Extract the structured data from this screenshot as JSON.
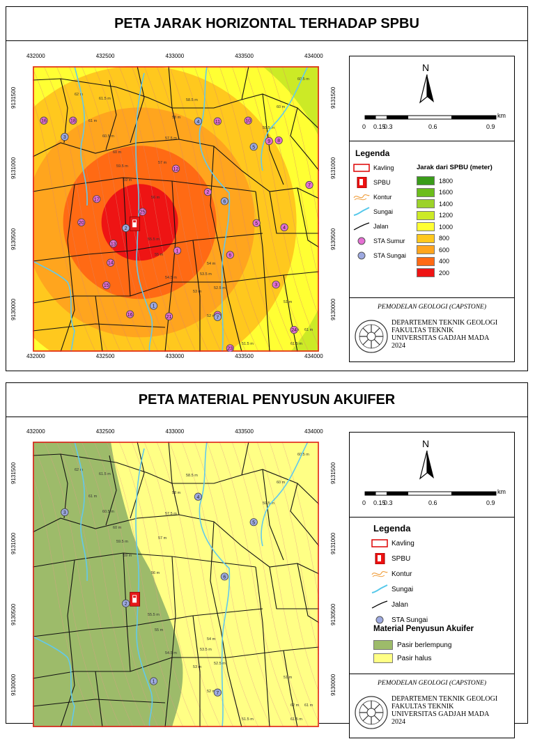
{
  "maps": [
    {
      "title": "PETA JARAK HORIZONTAL TERHADAP SPBU",
      "x_ticks": [
        "432000",
        "432500",
        "433000",
        "433500",
        "434000"
      ],
      "y_ticks": [
        "9131500",
        "9131000",
        "9130500",
        "9130000"
      ],
      "legend_title": "Legenda",
      "legend_items": [
        "Kavling",
        "SPBU",
        "Kontur",
        "Sungai",
        "Jalan",
        "STA Sumur",
        "STA Sungai"
      ],
      "distance_legend_title": "Jarak dari SPBU (meter)",
      "distance_classes": [
        {
          "label": "1800",
          "color": "#3a9c1a"
        },
        {
          "label": "1600",
          "color": "#6cbd1c"
        },
        {
          "label": "1400",
          "color": "#9cd22a"
        },
        {
          "label": "1200",
          "color": "#ccea26"
        },
        {
          "label": "1000",
          "color": "#ffff33"
        },
        {
          "label": "800",
          "color": "#ffc81e"
        },
        {
          "label": "600",
          "color": "#ffa51e"
        },
        {
          "label": "400",
          "color": "#ff6a14"
        },
        {
          "label": "200",
          "color": "#ee1414"
        }
      ],
      "wells": [
        {
          "id": "16",
          "x": 432050,
          "y": 9131335
        },
        {
          "id": "18",
          "x": 432260,
          "y": 9131335
        },
        {
          "id": "11",
          "x": 433300,
          "y": 9131330
        },
        {
          "id": "10",
          "x": 433520,
          "y": 9131335
        },
        {
          "id": "9",
          "x": 433670,
          "y": 9131190
        },
        {
          "id": "8",
          "x": 433740,
          "y": 9131195
        },
        {
          "id": "12",
          "x": 433000,
          "y": 9130995
        },
        {
          "id": "7",
          "x": 433960,
          "y": 9130880
        },
        {
          "id": "2",
          "x": 433230,
          "y": 9130830
        },
        {
          "id": "17",
          "x": 432430,
          "y": 9130780
        },
        {
          "id": "25",
          "x": 432760,
          "y": 9130690
        },
        {
          "id": "20",
          "x": 432320,
          "y": 9130615
        },
        {
          "id": "5",
          "x": 433580,
          "y": 9130610
        },
        {
          "id": "4",
          "x": 433780,
          "y": 9130580
        },
        {
          "id": "13",
          "x": 432550,
          "y": 9130465
        },
        {
          "id": "1",
          "x": 433010,
          "y": 9130415
        },
        {
          "id": "6",
          "x": 433390,
          "y": 9130385
        },
        {
          "id": "14",
          "x": 432530,
          "y": 9130330
        },
        {
          "id": "15",
          "x": 432500,
          "y": 9130170
        },
        {
          "id": "3",
          "x": 433720,
          "y": 9130175
        },
        {
          "id": "16",
          "x": 432670,
          "y": 9129965
        },
        {
          "id": "21",
          "x": 432950,
          "y": 9129950
        },
        {
          "id": "7",
          "x": 433300,
          "y": 9129960
        },
        {
          "id": "24",
          "x": 433850,
          "y": 9129855
        },
        {
          "id": "23",
          "x": 433390,
          "y": 9129725
        }
      ],
      "river_stations": [
        {
          "id": "3",
          "x": 432200,
          "y": 9131220
        },
        {
          "id": "4",
          "x": 433160,
          "y": 9131330
        },
        {
          "id": "5",
          "x": 433560,
          "y": 9131150
        },
        {
          "id": "6",
          "x": 433350,
          "y": 9130765
        },
        {
          "id": "2",
          "x": 432640,
          "y": 9130575
        },
        {
          "id": "1",
          "x": 432840,
          "y": 9130025
        },
        {
          "id": "7",
          "x": 433300,
          "y": 9129945
        }
      ]
    },
    {
      "title": "PETA MATERIAL PENYUSUN AKUIFER",
      "x_ticks": [
        "432000",
        "432500",
        "433000",
        "433500",
        "434000"
      ],
      "y_ticks": [
        "9131500",
        "9131000",
        "9130500",
        "9130000"
      ],
      "legend_title": "Legenda",
      "legend_items": [
        "Kavling",
        "SPBU",
        "Kontur",
        "Sungai",
        "Jalan",
        "STA Sungai"
      ],
      "aquifer_title": "Material Penyusun Akuifer",
      "aquifer_classes": [
        {
          "label": "Pasir berlempung",
          "color": "#9dbb6a"
        },
        {
          "label": "Pasir halus",
          "color": "#ffff85"
        }
      ],
      "river_stations": [
        {
          "id": "3",
          "x": 432200,
          "y": 9131220
        },
        {
          "id": "4",
          "x": 433160,
          "y": 9131330
        },
        {
          "id": "5",
          "x": 433560,
          "y": 9131150
        },
        {
          "id": "6",
          "x": 433350,
          "y": 9130765
        },
        {
          "id": "2",
          "x": 432640,
          "y": 9130575
        },
        {
          "id": "1",
          "x": 432840,
          "y": 9130025
        },
        {
          "id": "7",
          "x": 433300,
          "y": 9129945
        }
      ]
    }
  ],
  "north_label": "N",
  "scale": {
    "unit": "km",
    "labels": [
      "0",
      "0.15",
      "0.3",
      "0.6",
      "0.9"
    ]
  },
  "contour_labels": [
    "62 m",
    "61.5 m",
    "61 m",
    "60.5 m",
    "60 m",
    "59.5 m",
    "59 m",
    "58.5 m",
    "58 m",
    "57.5 m",
    "57 m",
    "56 m",
    "55.5 m",
    "55 m",
    "54.5 m",
    "54 m",
    "53.5 m",
    "53 m",
    "52.5 m",
    "52 m",
    "51.5 m",
    "51 m"
  ],
  "footer": {
    "project": "PEMODELAN GEOLOGI (CAPSTONE)",
    "lines": [
      "DEPARTEMEN TEKNIK GEOLOGI",
      "FAKULTAS TEKNIK",
      "UNIVERSITAS GADJAH MADA",
      "2024"
    ]
  }
}
